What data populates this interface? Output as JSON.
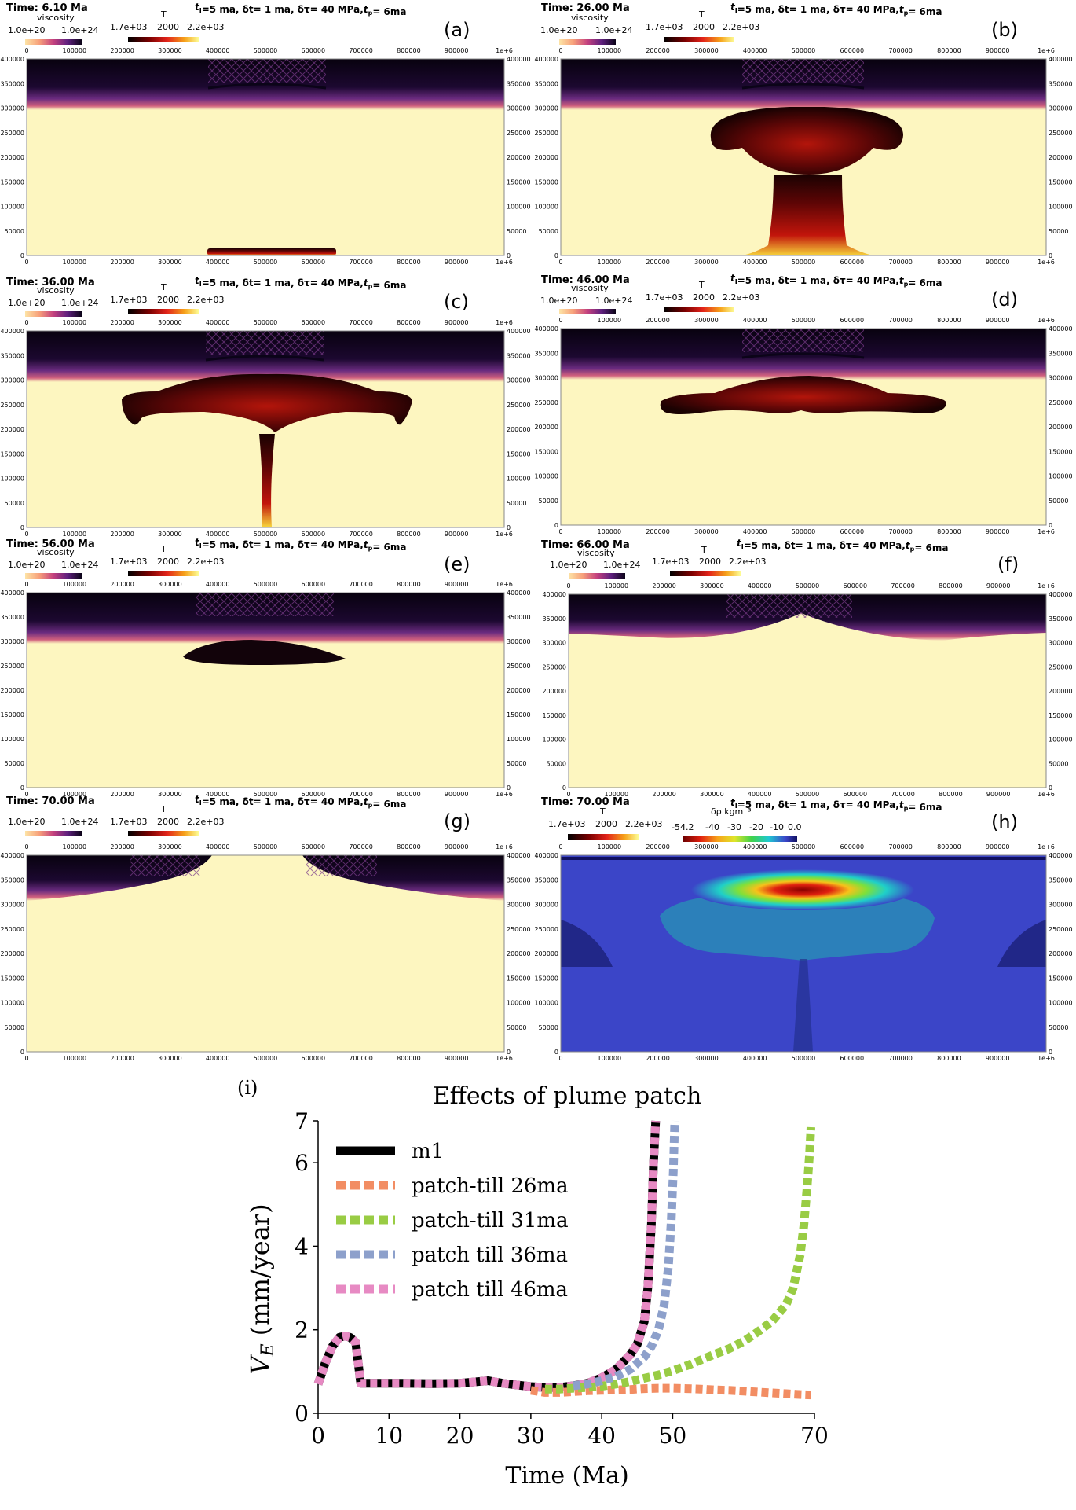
{
  "figure": {
    "params_header": "t_I=5 ma, δt= 1 ma, δτ= 40 MPa,t_p= 6ma",
    "colorbars": {
      "viscosity": {
        "title": "viscosity",
        "min_label": "1.0e+20",
        "max_label": "1.0e+24"
      },
      "temperature": {
        "title": "T",
        "min_label": "1.7e+03",
        "mid_label": "2000",
        "max_label": "2.2e+03"
      },
      "density": {
        "title": "δρ kgm⁻³",
        "tick_labels": [
          "-54.2",
          "-40",
          "-30",
          "-20",
          "-10",
          "0.0"
        ]
      }
    },
    "x_ticks": [
      "0",
      "100000",
      "200000",
      "300000",
      "400000",
      "500000",
      "600000",
      "700000",
      "800000",
      "900000",
      "1e+6"
    ],
    "y_ticks": [
      "0",
      "50000",
      "100000",
      "150000",
      "200000",
      "250000",
      "300000",
      "350000",
      "400000"
    ],
    "colors": {
      "mantle_bg": "#fdf6c0",
      "lithosphere_dark": "#0d0415",
      "lithosphere_purple": "#6a2b7f",
      "plume_dark": "#1a0202",
      "plume_red": "#b3150b",
      "density_bg": "#3b45c8"
    }
  },
  "panels": [
    {
      "letter": "(a)",
      "time": "Time: 6.10 Ma",
      "cbar": "both"
    },
    {
      "letter": "(b)",
      "time": "Time: 26.00 Ma",
      "cbar": "both"
    },
    {
      "letter": "(c)",
      "time": "Time: 36.00 Ma",
      "cbar": "both"
    },
    {
      "letter": "(d)",
      "time": "Time: 46.00 Ma",
      "cbar": "both"
    },
    {
      "letter": "(e)",
      "time": "Time: 56.00 Ma",
      "cbar": "both"
    },
    {
      "letter": "(f)",
      "time": "Time: 66.00 Ma",
      "cbar": "both"
    },
    {
      "letter": "(g)",
      "time": "Time: 70.00 Ma",
      "cbar": "both"
    },
    {
      "letter": "(h)",
      "time": "Time: 70.00 Ma",
      "cbar": "T_density"
    }
  ],
  "chart_data": {
    "panel_label": "(i)",
    "type": "line",
    "title": "Effects of plume patch",
    "xlabel": "Time (Ma)",
    "ylabel": "V_E (mm/year)",
    "xlim": [
      0,
      70
    ],
    "ylim": [
      0,
      7
    ],
    "xticks": [
      0,
      10,
      20,
      30,
      40,
      50,
      70
    ],
    "yticks": [
      0,
      2,
      4,
      6,
      7
    ],
    "legend_position": "top-left",
    "series": [
      {
        "name": "m1",
        "color": "#000000",
        "style": "solid",
        "x": [
          0,
          1,
          2,
          3,
          3.8,
          4.5,
          5.3,
          6,
          8,
          12,
          16,
          20,
          24,
          26,
          28,
          30,
          32,
          34,
          36,
          38,
          40,
          42,
          44,
          45,
          46,
          46.5,
          47,
          47.3,
          47.6
        ],
        "y": [
          0.7,
          1.2,
          1.6,
          1.82,
          1.85,
          1.82,
          1.7,
          0.72,
          0.72,
          0.72,
          0.71,
          0.72,
          0.78,
          0.72,
          0.68,
          0.64,
          0.62,
          0.62,
          0.66,
          0.72,
          0.85,
          1.05,
          1.4,
          1.65,
          2.2,
          3.0,
          4.5,
          6.0,
          7.0
        ]
      },
      {
        "name": "patch-till 26ma",
        "color": "#f28d63",
        "style": "dotted",
        "x": [
          30,
          32,
          34,
          36,
          38,
          40,
          42,
          44,
          46,
          48,
          50,
          52,
          54,
          56,
          58,
          60,
          62,
          64,
          66,
          68,
          69.5
        ],
        "y": [
          0.55,
          0.5,
          0.5,
          0.52,
          0.54,
          0.55,
          0.56,
          0.57,
          0.59,
          0.6,
          0.6,
          0.59,
          0.58,
          0.56,
          0.55,
          0.53,
          0.51,
          0.49,
          0.47,
          0.45,
          0.44
        ]
      },
      {
        "name": "patch-till 31ma",
        "color": "#99cc44",
        "style": "dotted",
        "x": [
          32,
          34,
          36,
          38,
          40,
          42,
          44,
          46,
          48,
          50,
          52,
          54,
          56,
          58,
          60,
          62,
          64,
          66,
          67,
          68,
          68.5,
          69,
          69.3,
          69.5
        ],
        "y": [
          0.58,
          0.58,
          0.6,
          0.62,
          0.65,
          0.7,
          0.76,
          0.84,
          0.92,
          1.02,
          1.14,
          1.28,
          1.42,
          1.55,
          1.72,
          1.95,
          2.2,
          2.6,
          3.0,
          3.8,
          4.5,
          5.5,
          6.2,
          6.85
        ]
      },
      {
        "name": "patch till 36ma",
        "color": "#8da0cb",
        "style": "dotted",
        "x": [
          36,
          38,
          40,
          42,
          44,
          46,
          47,
          48,
          48.8,
          49.4,
          49.8,
          50.1,
          50.3
        ],
        "y": [
          0.66,
          0.7,
          0.78,
          0.88,
          1.05,
          1.35,
          1.6,
          2.0,
          2.6,
          3.5,
          4.6,
          5.8,
          7.0
        ]
      },
      {
        "name": "patch till 46ma",
        "color": "#e78ac3",
        "style": "dotted",
        "x": [
          0,
          1,
          2,
          3,
          3.8,
          4.5,
          5.3,
          6,
          8,
          12,
          16,
          20,
          24,
          26,
          28,
          30,
          32,
          34,
          36,
          38,
          40,
          42,
          44,
          45,
          46,
          46.5,
          47,
          47.3,
          47.6
        ],
        "y": [
          0.7,
          1.2,
          1.6,
          1.82,
          1.85,
          1.82,
          1.7,
          0.72,
          0.72,
          0.72,
          0.71,
          0.72,
          0.78,
          0.72,
          0.68,
          0.64,
          0.62,
          0.62,
          0.66,
          0.72,
          0.85,
          1.05,
          1.4,
          1.65,
          2.2,
          3.0,
          4.5,
          6.0,
          7.0
        ]
      }
    ]
  }
}
